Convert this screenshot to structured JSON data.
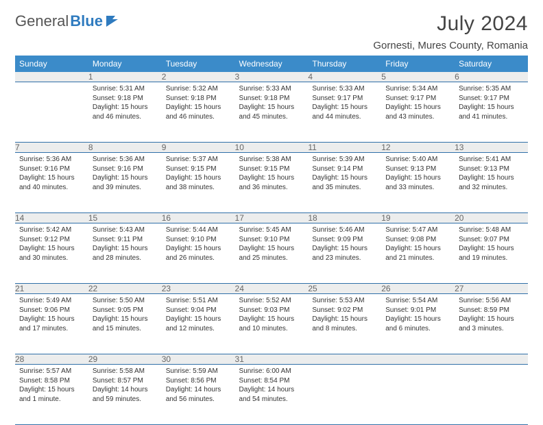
{
  "brand": {
    "part1": "General",
    "part2": "Blue"
  },
  "title": "July 2024",
  "location": "Gornesti, Mures County, Romania",
  "colors": {
    "header_bg": "#3b8bc9",
    "daynum_bg": "#eceded",
    "row_border": "#2f6fa8",
    "brand_blue": "#2f7bbf"
  },
  "weekdays": [
    "Sunday",
    "Monday",
    "Tuesday",
    "Wednesday",
    "Thursday",
    "Friday",
    "Saturday"
  ],
  "weeks": [
    [
      {
        "num": "",
        "lines": []
      },
      {
        "num": "1",
        "lines": [
          "Sunrise: 5:31 AM",
          "Sunset: 9:18 PM",
          "Daylight: 15 hours",
          "and 46 minutes."
        ]
      },
      {
        "num": "2",
        "lines": [
          "Sunrise: 5:32 AM",
          "Sunset: 9:18 PM",
          "Daylight: 15 hours",
          "and 46 minutes."
        ]
      },
      {
        "num": "3",
        "lines": [
          "Sunrise: 5:33 AM",
          "Sunset: 9:18 PM",
          "Daylight: 15 hours",
          "and 45 minutes."
        ]
      },
      {
        "num": "4",
        "lines": [
          "Sunrise: 5:33 AM",
          "Sunset: 9:17 PM",
          "Daylight: 15 hours",
          "and 44 minutes."
        ]
      },
      {
        "num": "5",
        "lines": [
          "Sunrise: 5:34 AM",
          "Sunset: 9:17 PM",
          "Daylight: 15 hours",
          "and 43 minutes."
        ]
      },
      {
        "num": "6",
        "lines": [
          "Sunrise: 5:35 AM",
          "Sunset: 9:17 PM",
          "Daylight: 15 hours",
          "and 41 minutes."
        ]
      }
    ],
    [
      {
        "num": "7",
        "lines": [
          "Sunrise: 5:36 AM",
          "Sunset: 9:16 PM",
          "Daylight: 15 hours",
          "and 40 minutes."
        ]
      },
      {
        "num": "8",
        "lines": [
          "Sunrise: 5:36 AM",
          "Sunset: 9:16 PM",
          "Daylight: 15 hours",
          "and 39 minutes."
        ]
      },
      {
        "num": "9",
        "lines": [
          "Sunrise: 5:37 AM",
          "Sunset: 9:15 PM",
          "Daylight: 15 hours",
          "and 38 minutes."
        ]
      },
      {
        "num": "10",
        "lines": [
          "Sunrise: 5:38 AM",
          "Sunset: 9:15 PM",
          "Daylight: 15 hours",
          "and 36 minutes."
        ]
      },
      {
        "num": "11",
        "lines": [
          "Sunrise: 5:39 AM",
          "Sunset: 9:14 PM",
          "Daylight: 15 hours",
          "and 35 minutes."
        ]
      },
      {
        "num": "12",
        "lines": [
          "Sunrise: 5:40 AM",
          "Sunset: 9:13 PM",
          "Daylight: 15 hours",
          "and 33 minutes."
        ]
      },
      {
        "num": "13",
        "lines": [
          "Sunrise: 5:41 AM",
          "Sunset: 9:13 PM",
          "Daylight: 15 hours",
          "and 32 minutes."
        ]
      }
    ],
    [
      {
        "num": "14",
        "lines": [
          "Sunrise: 5:42 AM",
          "Sunset: 9:12 PM",
          "Daylight: 15 hours",
          "and 30 minutes."
        ]
      },
      {
        "num": "15",
        "lines": [
          "Sunrise: 5:43 AM",
          "Sunset: 9:11 PM",
          "Daylight: 15 hours",
          "and 28 minutes."
        ]
      },
      {
        "num": "16",
        "lines": [
          "Sunrise: 5:44 AM",
          "Sunset: 9:10 PM",
          "Daylight: 15 hours",
          "and 26 minutes."
        ]
      },
      {
        "num": "17",
        "lines": [
          "Sunrise: 5:45 AM",
          "Sunset: 9:10 PM",
          "Daylight: 15 hours",
          "and 25 minutes."
        ]
      },
      {
        "num": "18",
        "lines": [
          "Sunrise: 5:46 AM",
          "Sunset: 9:09 PM",
          "Daylight: 15 hours",
          "and 23 minutes."
        ]
      },
      {
        "num": "19",
        "lines": [
          "Sunrise: 5:47 AM",
          "Sunset: 9:08 PM",
          "Daylight: 15 hours",
          "and 21 minutes."
        ]
      },
      {
        "num": "20",
        "lines": [
          "Sunrise: 5:48 AM",
          "Sunset: 9:07 PM",
          "Daylight: 15 hours",
          "and 19 minutes."
        ]
      }
    ],
    [
      {
        "num": "21",
        "lines": [
          "Sunrise: 5:49 AM",
          "Sunset: 9:06 PM",
          "Daylight: 15 hours",
          "and 17 minutes."
        ]
      },
      {
        "num": "22",
        "lines": [
          "Sunrise: 5:50 AM",
          "Sunset: 9:05 PM",
          "Daylight: 15 hours",
          "and 15 minutes."
        ]
      },
      {
        "num": "23",
        "lines": [
          "Sunrise: 5:51 AM",
          "Sunset: 9:04 PM",
          "Daylight: 15 hours",
          "and 12 minutes."
        ]
      },
      {
        "num": "24",
        "lines": [
          "Sunrise: 5:52 AM",
          "Sunset: 9:03 PM",
          "Daylight: 15 hours",
          "and 10 minutes."
        ]
      },
      {
        "num": "25",
        "lines": [
          "Sunrise: 5:53 AM",
          "Sunset: 9:02 PM",
          "Daylight: 15 hours",
          "and 8 minutes."
        ]
      },
      {
        "num": "26",
        "lines": [
          "Sunrise: 5:54 AM",
          "Sunset: 9:01 PM",
          "Daylight: 15 hours",
          "and 6 minutes."
        ]
      },
      {
        "num": "27",
        "lines": [
          "Sunrise: 5:56 AM",
          "Sunset: 8:59 PM",
          "Daylight: 15 hours",
          "and 3 minutes."
        ]
      }
    ],
    [
      {
        "num": "28",
        "lines": [
          "Sunrise: 5:57 AM",
          "Sunset: 8:58 PM",
          "Daylight: 15 hours",
          "and 1 minute."
        ]
      },
      {
        "num": "29",
        "lines": [
          "Sunrise: 5:58 AM",
          "Sunset: 8:57 PM",
          "Daylight: 14 hours",
          "and 59 minutes."
        ]
      },
      {
        "num": "30",
        "lines": [
          "Sunrise: 5:59 AM",
          "Sunset: 8:56 PM",
          "Daylight: 14 hours",
          "and 56 minutes."
        ]
      },
      {
        "num": "31",
        "lines": [
          "Sunrise: 6:00 AM",
          "Sunset: 8:54 PM",
          "Daylight: 14 hours",
          "and 54 minutes."
        ]
      },
      {
        "num": "",
        "lines": []
      },
      {
        "num": "",
        "lines": []
      },
      {
        "num": "",
        "lines": []
      }
    ]
  ]
}
